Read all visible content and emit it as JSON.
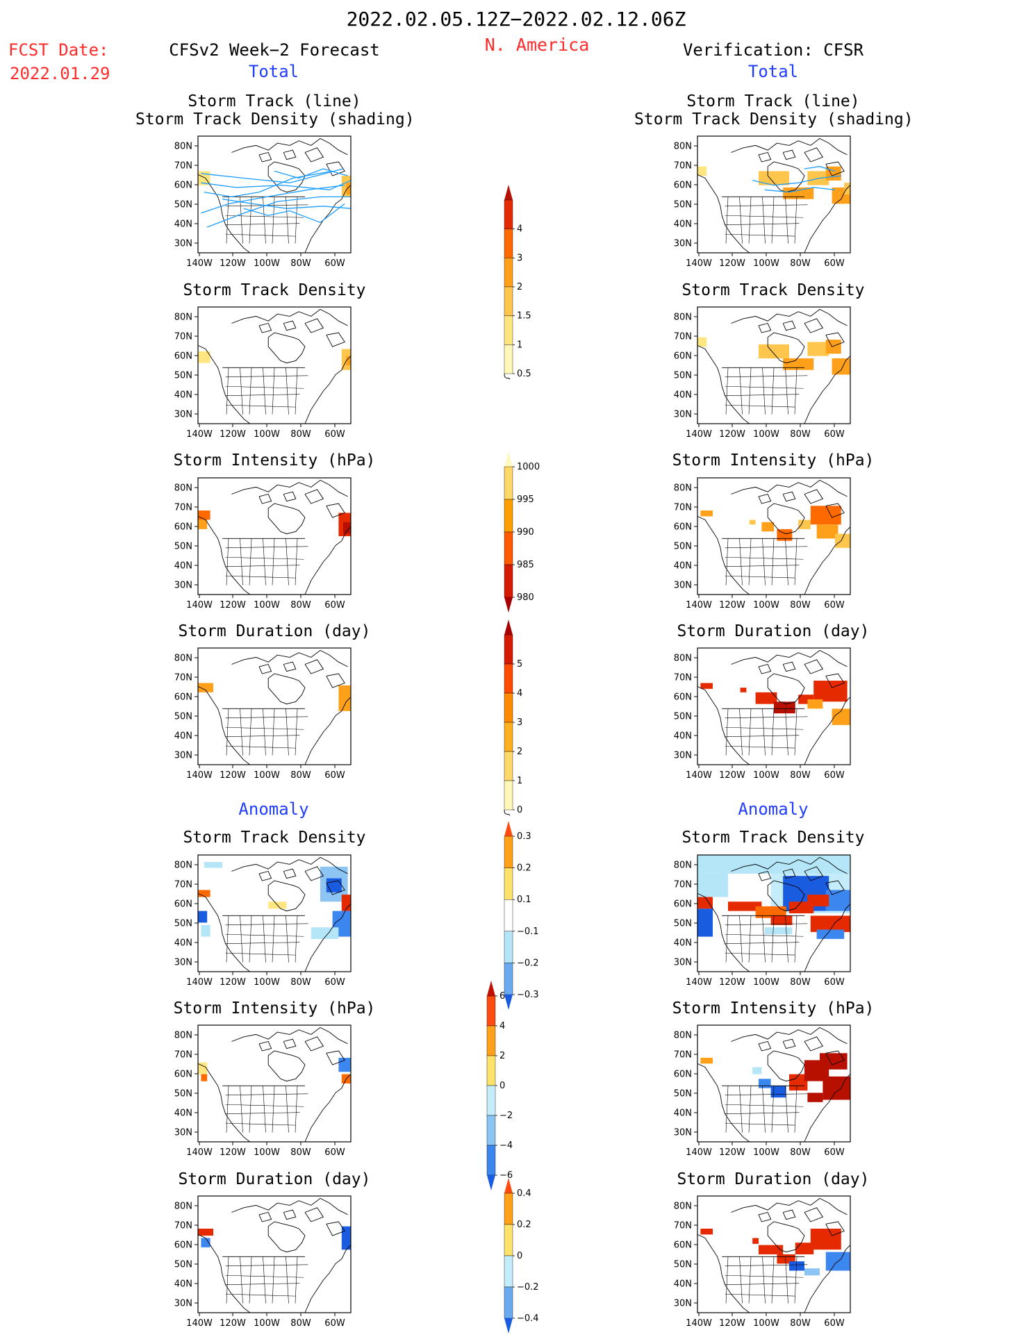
{
  "header": {
    "period": "2022.02.05.12Z−2022.02.12.06Z",
    "region": "N. America",
    "fcst_label": "FCST Date:",
    "fcst_date": "2022.01.29",
    "left_title": "CFSv2 Week−2 Forecast",
    "right_title": "Verification: CFSR",
    "total_label": "Total",
    "anomaly_label": "Anomaly"
  },
  "panel_titles": {
    "track": "Storm Track (line)",
    "track_density_shading": "Storm Track Density (shading)",
    "density": "Storm Track Density",
    "intensity": "Storm Intensity (hPa)",
    "duration": "Storm Duration (day)"
  },
  "axes": {
    "lat_ticks": [
      "80N",
      "70N",
      "60N",
      "50N",
      "40N",
      "30N"
    ],
    "lon_ticks": [
      "140W",
      "120W",
      "100W",
      "80W",
      "60W"
    ]
  },
  "colorbars": [
    {
      "id": "total-density",
      "labels": [
        "0.5",
        "1",
        "1.5",
        "2",
        "3",
        "4"
      ],
      "colors": [
        "#fff7b8",
        "#ffe680",
        "#ffc64d",
        "#ffa01a",
        "#ff6a00",
        "#e52a00",
        "#b81000"
      ],
      "min_arrow": false
    },
    {
      "id": "total-intensity",
      "labels": [
        "980",
        "985",
        "990",
        "995",
        "1000"
      ],
      "colors": [
        "#a80000",
        "#d41a00",
        "#ff5a00",
        "#ffa000",
        "#ffd86a",
        "#fff8c0"
      ],
      "min_arrow": true,
      "reversed": true
    },
    {
      "id": "total-duration",
      "labels": [
        "0",
        "1",
        "2",
        "3",
        "4",
        "5"
      ],
      "colors": [
        "#fff7b8",
        "#ffd86a",
        "#ffb020",
        "#ff8a00",
        "#ff4a00",
        "#d41a00",
        "#a80000"
      ],
      "min_arrow": false
    },
    {
      "id": "anom-density",
      "labels": [
        "−0.3",
        "−0.2",
        "−0.1",
        "0.1",
        "0.2",
        "0.3"
      ],
      "colors": [
        "#1a5ce0",
        "#6aaaf0",
        "#b4e6f8",
        "#ffffff",
        "#ffe26a",
        "#ffa21a",
        "#ff4a10"
      ],
      "min_arrow": true
    },
    {
      "id": "anom-intensity",
      "labels": [
        "−6",
        "−4",
        "−2",
        "0",
        "2",
        "4",
        "6"
      ],
      "colors": [
        "#1a5ce0",
        "#3c86f0",
        "#8cc4f4",
        "#c4ecfa",
        "#ffe26a",
        "#ffa21a",
        "#ff4a10",
        "#c01000"
      ],
      "min_arrow": true
    },
    {
      "id": "anom-duration",
      "labels": [
        "−0.4",
        "−0.2",
        "0",
        "0.2",
        "0.4"
      ],
      "colors": [
        "#1a5ce0",
        "#6aaaf0",
        "#c4ecfa",
        "#ffe26a",
        "#ffa21a",
        "#ff4a10"
      ],
      "min_arrow": true
    }
  ]
}
